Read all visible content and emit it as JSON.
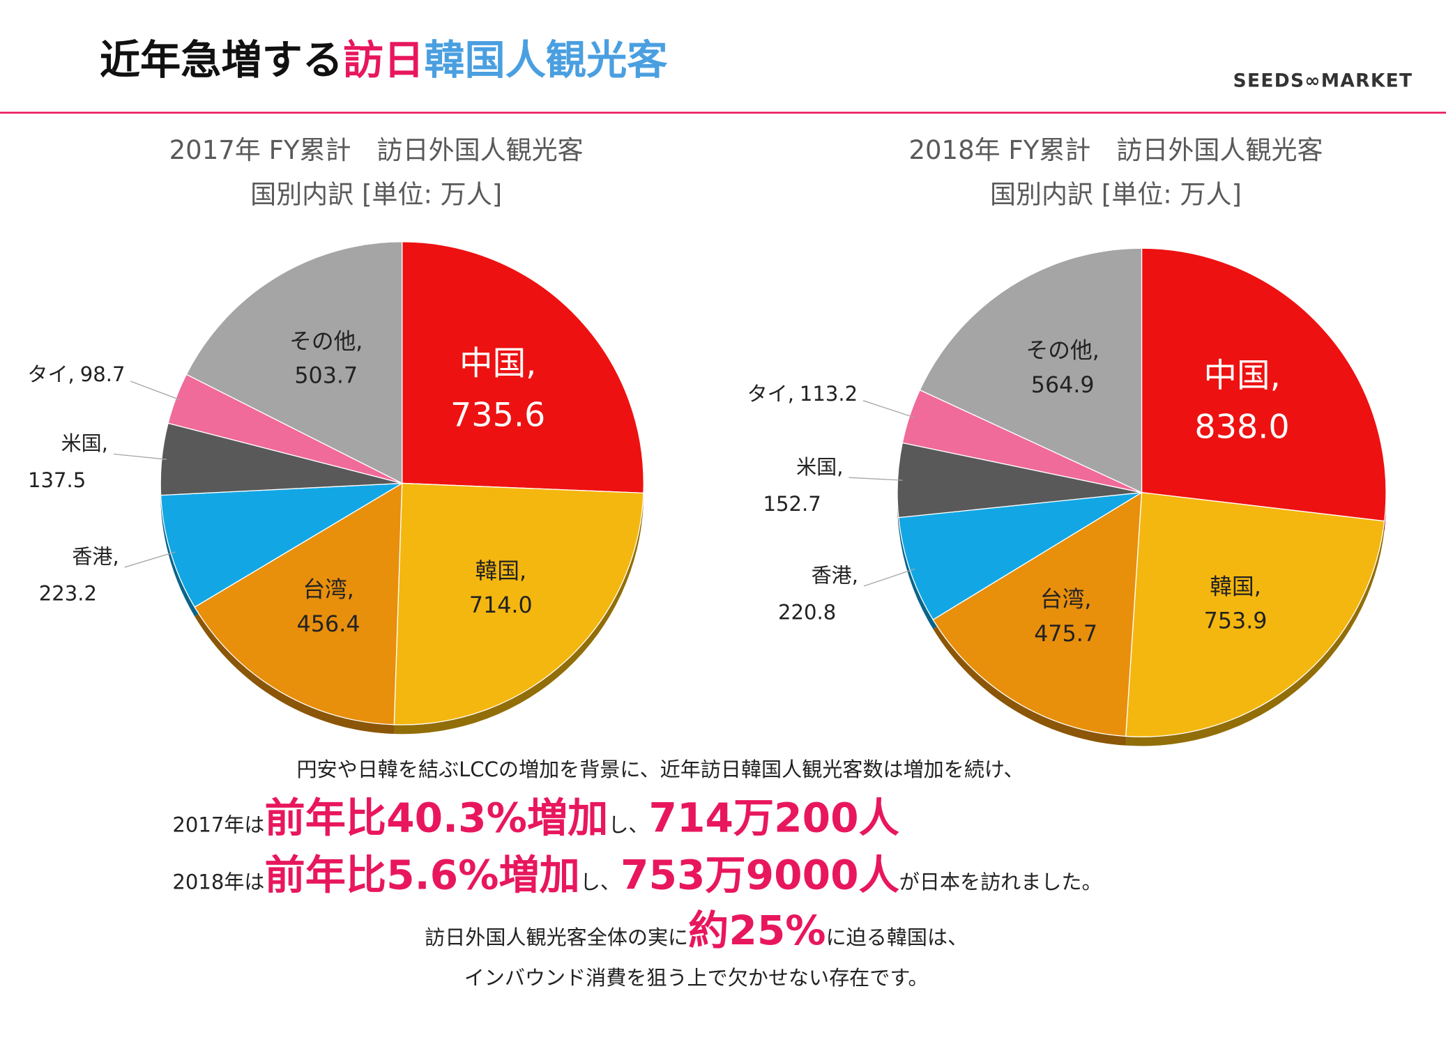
{
  "header": {
    "title": [
      {
        "text": "近年急増する",
        "color": "#111111"
      },
      {
        "text": "訪日",
        "color": "#e8175d"
      },
      {
        "text": "韓国人観光客",
        "color": "#4a9fe0"
      }
    ],
    "logo": "SEEDS∞MARKET"
  },
  "chart_data": [
    {
      "type": "pie",
      "title": [
        "2017年 FY累計　訪日外国人観光客",
        "国別内訳 [単位: 万人]"
      ],
      "categories": [
        "中国,",
        "韓国,",
        "台湾,",
        "香港,",
        "米国,",
        "タイ,",
        "その他,"
      ],
      "values": [
        735.6,
        714.0,
        456.4,
        223.2,
        137.5,
        98.7,
        503.7
      ],
      "value_labels": [
        "735.6",
        "714.0",
        "456.4",
        "223.2",
        "137.5",
        "98.7",
        "503.7"
      ],
      "colors": [
        "#ee1111",
        "#f4b70f",
        "#e88f0c",
        "#12a7e4",
        "#595959",
        "#f06a9a",
        "#a5a5a5"
      ]
    },
    {
      "type": "pie",
      "title": [
        "2018年 FY累計　訪日外国人観光客",
        "国別内訳 [単位: 万人]"
      ],
      "categories": [
        "中国,",
        "韓国,",
        "台湾,",
        "香港,",
        "米国,",
        "タイ,",
        "その他,"
      ],
      "values": [
        838.0,
        753.9,
        475.7,
        220.8,
        152.7,
        113.2,
        564.9
      ],
      "value_labels": [
        "838.0",
        "753.9",
        "475.7",
        "220.8",
        "152.7",
        "113.2",
        "564.9"
      ],
      "colors": [
        "#ee1111",
        "#f4b70f",
        "#e88f0c",
        "#12a7e4",
        "#595959",
        "#f06a9a",
        "#a5a5a5"
      ]
    }
  ],
  "text": {
    "lines": [
      [
        {
          "text": "円安や日韓を結ぶLCCの増加を背景に、近年訪日韓国人観光客数は増加を続け、",
          "style": "normal"
        }
      ],
      [
        {
          "text": "2017年は",
          "style": "normal"
        },
        {
          "text": "前年比40.3%増加",
          "style": "big"
        },
        {
          "text": "し、",
          "style": "normal"
        },
        {
          "text": "714万200人",
          "style": "big"
        }
      ],
      [
        {
          "text": "2018年は",
          "style": "normal"
        },
        {
          "text": "前年比5.6%増加",
          "style": "big"
        },
        {
          "text": "し、",
          "style": "normal"
        },
        {
          "text": "753万9000人",
          "style": "big"
        },
        {
          "text": "が日本を訪れました。",
          "style": "normal"
        }
      ],
      [
        {
          "text": "訪日外国人観光客全体の実に",
          "style": "normal"
        },
        {
          "text": "約25%",
          "style": "big"
        },
        {
          "text": "に迫る韓国は、",
          "style": "normal"
        }
      ],
      [
        {
          "text": "インバウンド消費を狙う上で欠かせない存在です。",
          "style": "normal"
        }
      ]
    ]
  }
}
